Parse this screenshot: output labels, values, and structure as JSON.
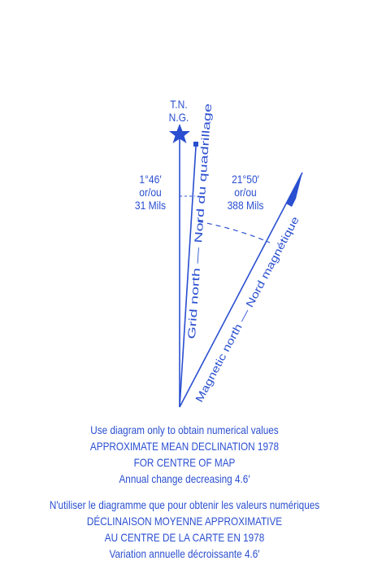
{
  "diagram": {
    "true_north_label": "T.N.",
    "grid_north_label_top": "N.G.",
    "grid_magnetic_angle": {
      "degrees": "1°46′",
      "connector": "or/ou",
      "mils": "31 Mils"
    },
    "magnetic_angle": {
      "degrees": "21°50′",
      "connector": "or/ou",
      "mils": "388 Mils"
    },
    "grid_north_line_label": "Grid north  —  Nord du quadrillage",
    "magnetic_north_line_label": "Magnetic north  —  Nord magnétique",
    "color": "#2a4fd0"
  },
  "notes_en": [
    "Use diagram only to obtain numerical values",
    "APPROXIMATE MEAN DECLINATION 1978",
    "FOR CENTRE OF MAP",
    "Annual change  decreasing  4.6′"
  ],
  "notes_fr": [
    "N'utiliser le diagramme que pour obtenir les valeurs numériques",
    "DÉCLINAISON MOYENNE APPROXIMATIVE",
    "AU CENTRE DE LA CARTE EN  1978",
    "Variation annuelle  décroissante  4.6′"
  ]
}
